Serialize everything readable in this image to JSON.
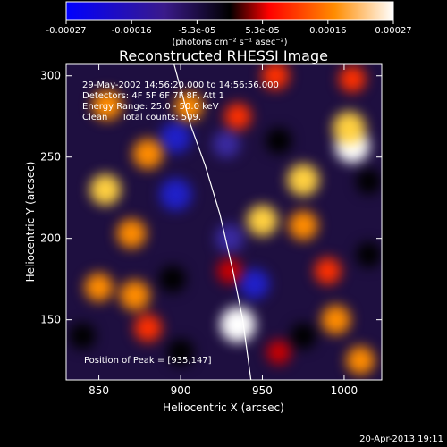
{
  "chart_data": {
    "type": "heatmap",
    "title": "Reconstructed RHESSI Image",
    "xlabel": "Heliocentric X (arcsec)",
    "ylabel": "Heliocentric Y (arcsec)",
    "xlim": [
      830,
      1023
    ],
    "ylim": [
      113,
      307
    ],
    "x_ticks": [
      850,
      900,
      950,
      1000
    ],
    "y_ticks": [
      150,
      200,
      250,
      300
    ],
    "colorbar": {
      "min": -0.00027,
      "max": 0.00027,
      "ticks": [
        "-0.00027",
        "-0.00016",
        "-5.3e-05",
        "5.3e-05",
        "0.00016",
        "0.00027"
      ],
      "label": "(photons cm⁻² s⁻¹ asec⁻²)",
      "colors": [
        "#0000ff",
        "#3a1a8a",
        "#000000",
        "#ff0000",
        "#ff8c00",
        "#ffffff"
      ]
    },
    "annotations": [
      "29-May-2002 14:56:20.000 to 14:56:56.000",
      "Detectors: 4F 5F 6F 7F 8F, Att 1",
      "Energy Range: 25.0 - 50.0 keV",
      "Clean     Total counts: 509."
    ],
    "peak": {
      "label": "Position of Peak = [935,147]",
      "x": 935,
      "y": 147
    },
    "hotspots": [
      {
        "x": 935,
        "y": 147,
        "v": 1.0
      },
      {
        "x": 1005,
        "y": 257,
        "v": 0.95
      },
      {
        "x": 1003,
        "y": 268,
        "v": 0.85
      },
      {
        "x": 975,
        "y": 236,
        "v": 0.8
      },
      {
        "x": 950,
        "y": 211,
        "v": 0.75
      },
      {
        "x": 975,
        "y": 208,
        "v": 0.65
      },
      {
        "x": 854,
        "y": 230,
        "v": 0.75
      },
      {
        "x": 880,
        "y": 252,
        "v": 0.7
      },
      {
        "x": 905,
        "y": 281,
        "v": 0.6
      },
      {
        "x": 855,
        "y": 282,
        "v": 0.7
      },
      {
        "x": 870,
        "y": 203,
        "v": 0.65
      },
      {
        "x": 872,
        "y": 165,
        "v": 0.7
      },
      {
        "x": 850,
        "y": 170,
        "v": 0.6
      },
      {
        "x": 880,
        "y": 145,
        "v": 0.55
      },
      {
        "x": 995,
        "y": 150,
        "v": 0.65
      },
      {
        "x": 1010,
        "y": 125,
        "v": 0.6
      },
      {
        "x": 990,
        "y": 180,
        "v": 0.5
      },
      {
        "x": 935,
        "y": 275,
        "v": 0.5
      },
      {
        "x": 958,
        "y": 300,
        "v": 0.55
      },
      {
        "x": 1005,
        "y": 298,
        "v": 0.5
      },
      {
        "x": 930,
        "y": 180,
        "v": 0.4
      },
      {
        "x": 960,
        "y": 130,
        "v": 0.35
      },
      {
        "x": 895,
        "y": 175,
        "v": -0.5
      },
      {
        "x": 897,
        "y": 227,
        "v": -0.8
      },
      {
        "x": 897,
        "y": 262,
        "v": -0.75
      },
      {
        "x": 928,
        "y": 258,
        "v": -0.55
      },
      {
        "x": 945,
        "y": 172,
        "v": -0.7
      },
      {
        "x": 930,
        "y": 200,
        "v": -0.6
      },
      {
        "x": 900,
        "y": 130,
        "v": -0.5
      },
      {
        "x": 975,
        "y": 140,
        "v": -0.45
      },
      {
        "x": 960,
        "y": 260,
        "v": -0.45
      },
      {
        "x": 1015,
        "y": 190,
        "v": -0.4
      },
      {
        "x": 840,
        "y": 140,
        "v": -0.45
      },
      {
        "x": 1015,
        "y": 235,
        "v": -0.4
      }
    ],
    "limb_curve": [
      [
        896,
        307
      ],
      [
        906,
        270
      ],
      [
        915,
        245
      ],
      [
        924,
        215
      ],
      [
        932,
        180
      ],
      [
        938,
        150
      ],
      [
        943,
        113
      ]
    ]
  },
  "footer": {
    "timestamp": "20-Apr-2013 19:11"
  }
}
